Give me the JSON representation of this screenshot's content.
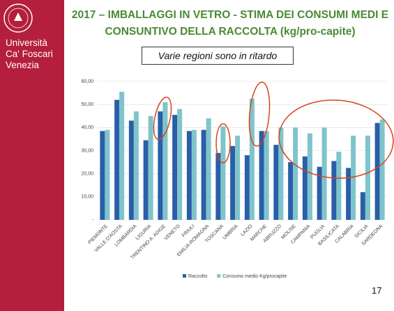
{
  "sidebar": {
    "lines": [
      "Università",
      "Ca' Foscari",
      "Venezia"
    ]
  },
  "note": "Varie regioni sono in ritardo",
  "page_number": "17",
  "chart_data": {
    "type": "bar",
    "title": "2017 – IMBALLAGGI IN VETRO - STIMA DEI CONSUMI MEDI E CONSUNTIVO DELLA RACCOLTA  (kg/pro-capite)",
    "categories": [
      "PIEMONTE",
      "VALLE D'AOSTA",
      "LOMBARDIA",
      "LIGURIA",
      "TRENTINO A. ADIGE",
      "VENETO",
      "FRIULI",
      "EMILIA-ROMAGNA",
      "TOSCANA",
      "UMBRIA",
      "LAZIO",
      "MARCHE",
      "ABRUZZO",
      "MOLISE",
      "CAMPANIA",
      "PUGLIA",
      "BASILICATA",
      "CALABRIA",
      "SICILIA",
      "SARDEGNA"
    ],
    "series": [
      {
        "name": "Raccolto",
        "color": "#2a5ea8",
        "values": [
          38.5,
          52,
          43,
          34.5,
          47,
          45.5,
          38.5,
          39,
          29,
          32,
          28,
          38.5,
          32.5,
          25,
          27.5,
          23,
          25.5,
          22.5,
          12,
          42
        ]
      },
      {
        "name": "Consumo medio Kg/procapite",
        "color": "#7fc4cb",
        "values": [
          39,
          55.5,
          47,
          45,
          51,
          48,
          39,
          44,
          40.5,
          36.5,
          52.5,
          38.5,
          40,
          40,
          37.5,
          40,
          29.5,
          36.5,
          36.5,
          43.5
        ]
      }
    ],
    "ylim": [
      0,
      60
    ],
    "yticks": [
      {
        "value": 0,
        "label": "-"
      },
      {
        "value": 10,
        "label": "10,00"
      },
      {
        "value": 20,
        "label": "20,00"
      },
      {
        "value": 30,
        "label": "30,00"
      },
      {
        "value": 40,
        "label": "40,00"
      },
      {
        "value": 50,
        "label": "50,00"
      },
      {
        "value": 60,
        "label": "60,00"
      }
    ],
    "grid": true,
    "legend": "bottom"
  }
}
